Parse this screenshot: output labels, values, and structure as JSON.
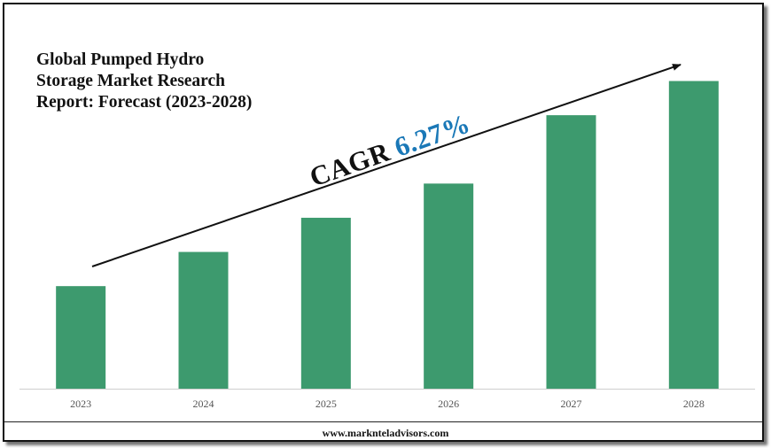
{
  "title_lines": [
    "Global Pumped Hydro",
    "Storage Market Research",
    "Report: Forecast (2023-2028)"
  ],
  "cagr": {
    "label": "CAGR",
    "value": "6.27%"
  },
  "footer": {
    "url": "www.marknteladvisors.com"
  },
  "colors": {
    "bar": "#3d9a6e",
    "cagr_value": "#1a78b7",
    "axis": "#cfcfcf"
  },
  "chart_data": {
    "type": "bar",
    "title": "Global Pumped Hydro Storage Market Research Report: Forecast (2023-2028)",
    "categories": [
      "2023",
      "2024",
      "2025",
      "2026",
      "2027",
      "2028"
    ],
    "values": [
      33,
      44,
      55,
      66,
      88,
      99
    ],
    "ylim": [
      0,
      100
    ],
    "xlabel": "",
    "ylabel": "",
    "grid": false,
    "legend": "none",
    "annotation": "CAGR 6.27%"
  }
}
